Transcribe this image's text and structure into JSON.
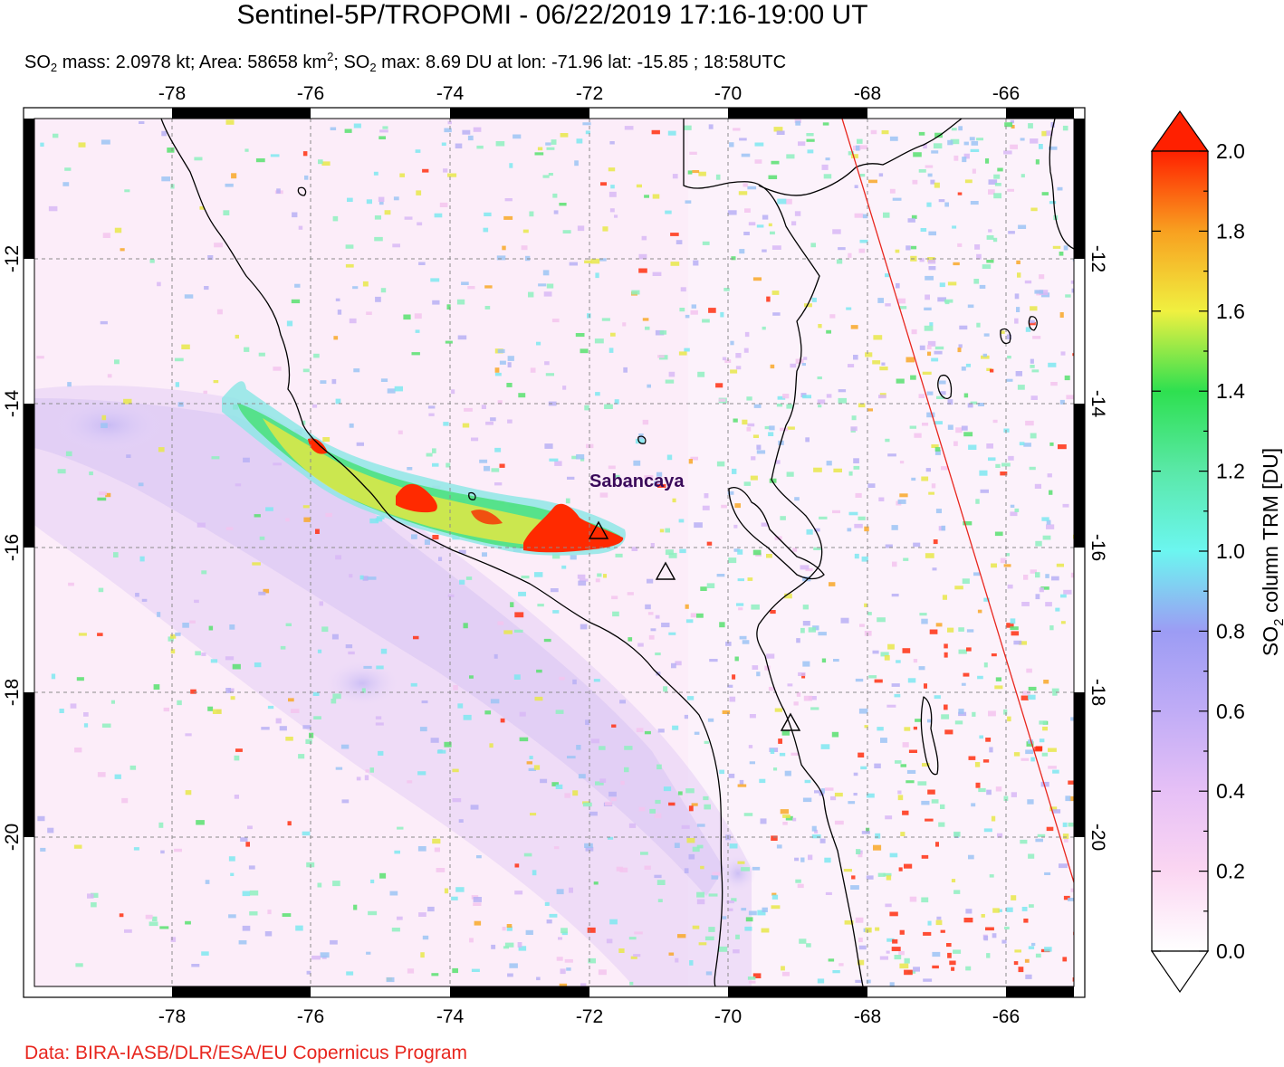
{
  "title": "Sentinel-5P/TROPOMI - 06/22/2019 17:16-19:00 UT",
  "subtitle": {
    "mass_prefix": "SO",
    "mass_sub": "2",
    "mass_text": " mass: 2.0978 kt; Area: 58658 km",
    "area_sup": "2",
    "max_prefix": "; SO",
    "max_sub": "2",
    "max_text": " max: 8.69 DU at lon: -71.96 lat: -15.85 ; 18:58UTC"
  },
  "credit": "Data: BIRA-IASB/DLR/ESA/EU Copernicus Program",
  "map": {
    "lon_ticks": [
      "-78",
      "-76",
      "-74",
      "-72",
      "-70",
      "-68",
      "-66"
    ],
    "lat_ticks": [
      "-12",
      "-14",
      "-16",
      "-18",
      "-20"
    ],
    "volcano_label": "Sabancaya",
    "volcano_label_color": "#3a0a5a",
    "plume_color": "#ff2a00",
    "coast_color": "#000000",
    "orbit_line_color": "#e8261e"
  },
  "colorbar": {
    "ticks": [
      "0.0",
      "0.2",
      "0.4",
      "0.6",
      "0.8",
      "1.0",
      "1.2",
      "1.4",
      "1.6",
      "1.8",
      "2.0"
    ],
    "label_prefix": "SO",
    "label_sub": "2",
    "label_text": " column TRM [DU]",
    "colors": [
      "#ffffff",
      "#fbd6f2",
      "#d3b4f6",
      "#9c9cf4",
      "#78c0f4",
      "#6cf6f0",
      "#5ae8a8",
      "#2ee050",
      "#f0f040",
      "#f8a020",
      "#ff2000"
    ]
  }
}
